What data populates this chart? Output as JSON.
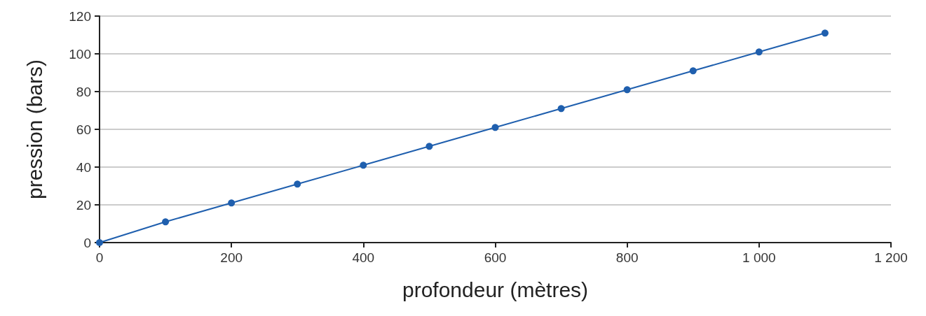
{
  "chart_data": {
    "type": "line",
    "xlabel": "profondeur (mètres)",
    "ylabel": "pression (bars)",
    "x": [
      0,
      100,
      200,
      300,
      400,
      500,
      600,
      700,
      800,
      900,
      1000,
      1100
    ],
    "series": [
      {
        "color": "#1f5fae",
        "values": [
          0,
          11,
          21,
          31,
          41,
          51,
          61,
          71,
          81,
          91,
          101,
          111
        ]
      }
    ],
    "xlim": [
      0,
      1200
    ],
    "xticks": [
      0,
      200,
      400,
      600,
      800,
      {
        "value": 1000,
        "label": "1 000"
      },
      {
        "value": 1200,
        "label": "1 200"
      }
    ],
    "ylim": [
      0,
      120
    ],
    "yticks": [
      0,
      20,
      40,
      60,
      80,
      100,
      120
    ],
    "grid": "y",
    "marker": "circle",
    "line_style": "solid"
  }
}
